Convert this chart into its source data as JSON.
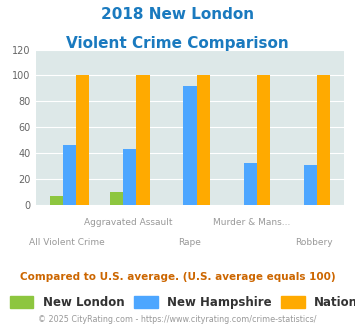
{
  "title_line1": "2018 New London",
  "title_line2": "Violent Crime Comparison",
  "categories": [
    "All Violent Crime",
    "Aggravated Assault",
    "Rape",
    "Murder & Mans...",
    "Robbery"
  ],
  "top_labels": [
    "",
    "Aggravated Assault",
    "",
    "Murder & Mans...",
    ""
  ],
  "bottom_labels": [
    "All Violent Crime",
    "",
    "Rape",
    "",
    "Robbery"
  ],
  "new_london": [
    7,
    10,
    0,
    0,
    0
  ],
  "new_hampshire": [
    46,
    43,
    92,
    32,
    31
  ],
  "national": [
    100,
    100,
    100,
    100,
    100
  ],
  "colors": {
    "new_london": "#8dc63f",
    "new_hampshire": "#4da6ff",
    "national": "#ffaa00",
    "background_plot": "#dde8e8",
    "title": "#1a7abf",
    "axis_label": "#999999",
    "footer_text": "#999999",
    "compare_text": "#cc6600",
    "legend_text": "#333333"
  },
  "ylim": [
    0,
    120
  ],
  "yticks": [
    0,
    20,
    40,
    60,
    80,
    100,
    120
  ],
  "bar_width": 0.22,
  "legend_labels": [
    "New London",
    "New Hampshire",
    "National"
  ],
  "compare_text": "Compared to U.S. average. (U.S. average equals 100)",
  "footer_text": "© 2025 CityRating.com - https://www.cityrating.com/crime-statistics/"
}
